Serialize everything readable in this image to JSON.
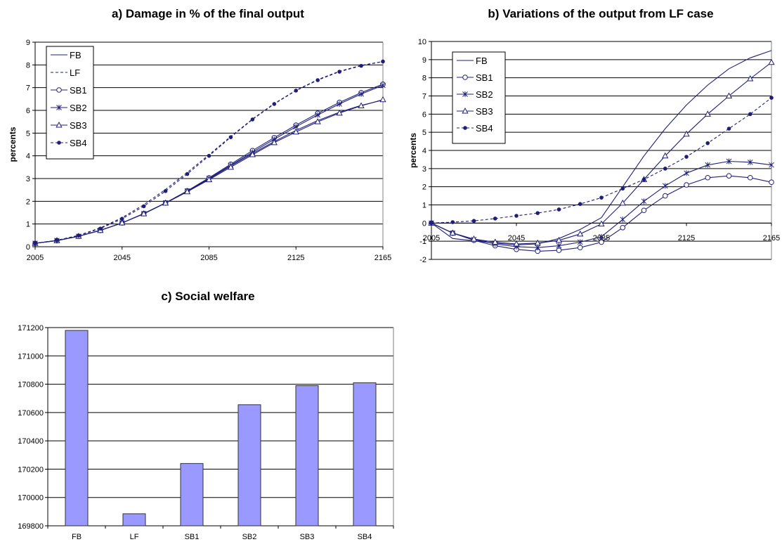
{
  "colors": {
    "line": "#1f1f7a",
    "bar_fill": "#9999ff",
    "bar_stroke": "#333333",
    "grid": "#000000"
  },
  "chart_data": [
    {
      "id": "a",
      "type": "line",
      "title": "a) Damage in % of the final output",
      "ylabel": "percents",
      "xlabel": "",
      "x": [
        2005,
        2015,
        2025,
        2035,
        2045,
        2055,
        2065,
        2075,
        2085,
        2095,
        2105,
        2115,
        2125,
        2135,
        2145,
        2155,
        2165
      ],
      "x_ticks": [
        "2005",
        "2045",
        "2085",
        "2125",
        "2165"
      ],
      "ylim": [
        0,
        9
      ],
      "y_ticks": [
        "0",
        "1",
        "2",
        "3",
        "4",
        "5",
        "6",
        "7",
        "8",
        "9"
      ],
      "grid": true,
      "legend": "top-left",
      "series": [
        {
          "name": "FB",
          "dash": "solid",
          "marker": "none",
          "values": [
            0.15,
            0.27,
            0.46,
            0.72,
            1.05,
            1.45,
            1.92,
            2.43,
            2.98,
            3.55,
            4.1,
            4.63,
            5.12,
            5.55,
            5.92,
            6.22,
            6.45
          ]
        },
        {
          "name": "LF",
          "dash": "dashed",
          "marker": "none",
          "values": [
            0.15,
            0.28,
            0.5,
            0.83,
            1.28,
            1.85,
            2.52,
            3.27,
            4.05,
            4.85,
            5.62,
            6.3,
            6.88,
            7.35,
            7.72,
            7.98,
            8.15
          ]
        },
        {
          "name": "SB1",
          "dash": "solid",
          "marker": "circle",
          "values": [
            0.15,
            0.27,
            0.46,
            0.72,
            1.05,
            1.46,
            1.93,
            2.46,
            3.03,
            3.63,
            4.23,
            4.8,
            5.35,
            5.87,
            6.35,
            6.78,
            7.15
          ]
        },
        {
          "name": "SB2",
          "dash": "solid",
          "marker": "star",
          "values": [
            0.15,
            0.27,
            0.46,
            0.72,
            1.05,
            1.46,
            1.93,
            2.45,
            3.0,
            3.58,
            4.16,
            4.73,
            5.28,
            5.8,
            6.28,
            6.72,
            7.1
          ]
        },
        {
          "name": "SB3",
          "dash": "solid",
          "marker": "triangle",
          "values": [
            0.15,
            0.27,
            0.46,
            0.72,
            1.05,
            1.45,
            1.92,
            2.42,
            2.95,
            3.5,
            4.05,
            4.58,
            5.05,
            5.5,
            5.88,
            6.2,
            6.47
          ]
        },
        {
          "name": "SB4",
          "dash": "dashed",
          "marker": "dot",
          "values": [
            0.15,
            0.28,
            0.49,
            0.8,
            1.23,
            1.78,
            2.45,
            3.2,
            4.0,
            4.82,
            5.6,
            6.28,
            6.87,
            7.33,
            7.7,
            7.96,
            8.15
          ]
        }
      ]
    },
    {
      "id": "b",
      "type": "line",
      "title": "b) Variations of the output from LF case",
      "ylabel": "percents",
      "xlabel": "",
      "x": [
        2005,
        2015,
        2025,
        2035,
        2045,
        2055,
        2065,
        2075,
        2085,
        2095,
        2105,
        2115,
        2125,
        2135,
        2145,
        2155,
        2165
      ],
      "x_ticks": [
        "2005",
        "2045",
        "2085",
        "2125",
        "2165"
      ],
      "ylim": [
        -2,
        10
      ],
      "y_ticks": [
        "-2",
        "-1",
        "0",
        "1",
        "2",
        "3",
        "4",
        "5",
        "6",
        "7",
        "8",
        "9",
        "10"
      ],
      "grid": true,
      "legend": "top-left",
      "series": [
        {
          "name": "FB",
          "dash": "solid",
          "marker": "none",
          "values": [
            0,
            -0.85,
            -0.98,
            -1.1,
            -1.2,
            -1.15,
            -0.85,
            -0.35,
            0.3,
            2.0,
            3.7,
            5.2,
            6.5,
            7.6,
            8.5,
            9.1,
            9.5
          ]
        },
        {
          "name": "SB1",
          "dash": "solid",
          "marker": "circle",
          "values": [
            0,
            -0.55,
            -0.95,
            -1.25,
            -1.45,
            -1.55,
            -1.5,
            -1.35,
            -1.05,
            -0.25,
            0.7,
            1.5,
            2.1,
            2.5,
            2.6,
            2.5,
            2.25
          ]
        },
        {
          "name": "SB2",
          "dash": "solid",
          "marker": "star",
          "values": [
            0,
            -0.55,
            -0.9,
            -1.15,
            -1.3,
            -1.35,
            -1.25,
            -1.05,
            -0.75,
            0.2,
            1.2,
            2.05,
            2.75,
            3.2,
            3.4,
            3.35,
            3.2
          ]
        },
        {
          "name": "SB3",
          "dash": "solid",
          "marker": "triangle",
          "values": [
            0,
            -0.55,
            -0.88,
            -1.05,
            -1.15,
            -1.1,
            -0.95,
            -0.6,
            -0.05,
            1.1,
            2.4,
            3.7,
            4.9,
            6.0,
            7.0,
            7.95,
            8.85
          ]
        },
        {
          "name": "SB4",
          "dash": "dashed",
          "marker": "dot",
          "values": [
            0,
            0.05,
            0.12,
            0.25,
            0.4,
            0.55,
            0.75,
            1.05,
            1.4,
            1.9,
            2.4,
            3.0,
            3.65,
            4.4,
            5.2,
            6.0,
            6.9
          ]
        }
      ]
    },
    {
      "id": "c",
      "type": "bar",
      "title": "c) Social welfare",
      "xlabel": "",
      "ylabel": "",
      "categories": [
        "FB",
        "LF",
        "SB1",
        "SB2",
        "SB3",
        "SB4"
      ],
      "values": [
        171180,
        169885,
        170240,
        170655,
        170790,
        170810
      ],
      "ylim": [
        169800,
        171200
      ],
      "y_ticks": [
        "169800",
        "170000",
        "170200",
        "170400",
        "170600",
        "170800",
        "171000",
        "171200"
      ],
      "grid": true
    }
  ]
}
